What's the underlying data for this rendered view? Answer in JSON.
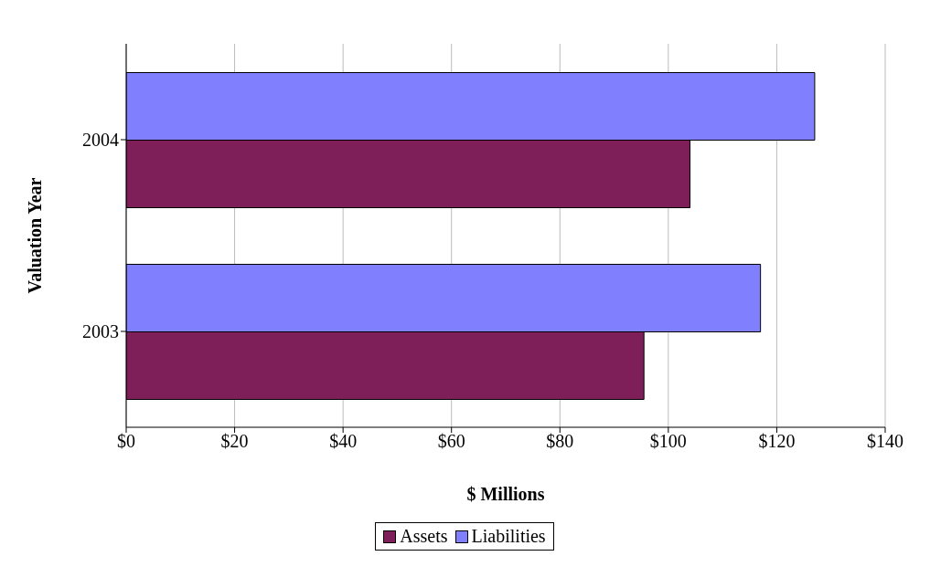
{
  "chart_data": {
    "type": "bar",
    "orientation": "horizontal",
    "xlabel": "$ Millions",
    "ylabel": "Valuation Year",
    "categories": [
      "2004",
      "2003"
    ],
    "series": [
      {
        "name": "Assets",
        "color": "#7f1f5a",
        "values": [
          104,
          95.5
        ]
      },
      {
        "name": "Liabilities",
        "color": "#8080ff",
        "values": [
          127,
          117
        ]
      }
    ],
    "xlim": [
      0,
      140
    ],
    "xticks": [
      {
        "value": 0,
        "label": "$0"
      },
      {
        "value": 20,
        "label": "$20"
      },
      {
        "value": 40,
        "label": "$40"
      },
      {
        "value": 60,
        "label": "$60"
      },
      {
        "value": 80,
        "label": "$80"
      },
      {
        "value": 100,
        "label": "$100"
      },
      {
        "value": 120,
        "label": "$120"
      },
      {
        "value": 140,
        "label": "$140"
      }
    ],
    "grid": "x",
    "legend": "bottom"
  }
}
